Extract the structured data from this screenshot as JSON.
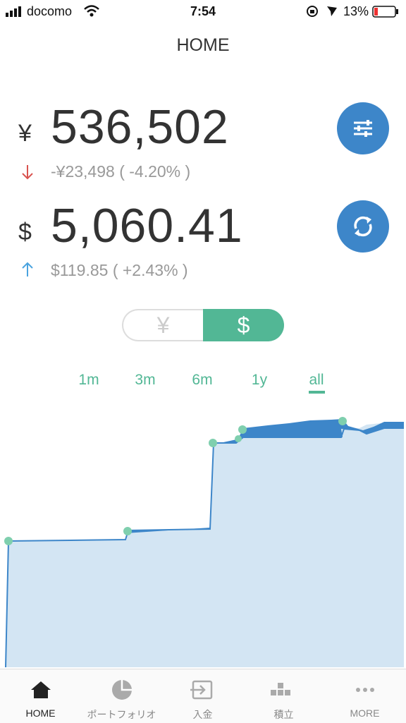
{
  "status_bar": {
    "carrier": "docomo",
    "time": "7:54",
    "battery": "13%"
  },
  "header": {
    "title": "HOME"
  },
  "balances": [
    {
      "currency_symbol": "¥",
      "amount": "536,502",
      "change": "-¥23,498 ( -4.20% )"
    },
    {
      "currency_symbol": "$",
      "amount": "5,060.41",
      "change": "$119.85 ( +2.43% )"
    }
  ],
  "currency_toggle": [
    "¥",
    "$"
  ],
  "periods": [
    "1m",
    "3m",
    "6m",
    "1y",
    "all"
  ],
  "tab_bar": [
    "HOME",
    "ポートフォリオ",
    "入金",
    "積立",
    "MORE"
  ]
}
